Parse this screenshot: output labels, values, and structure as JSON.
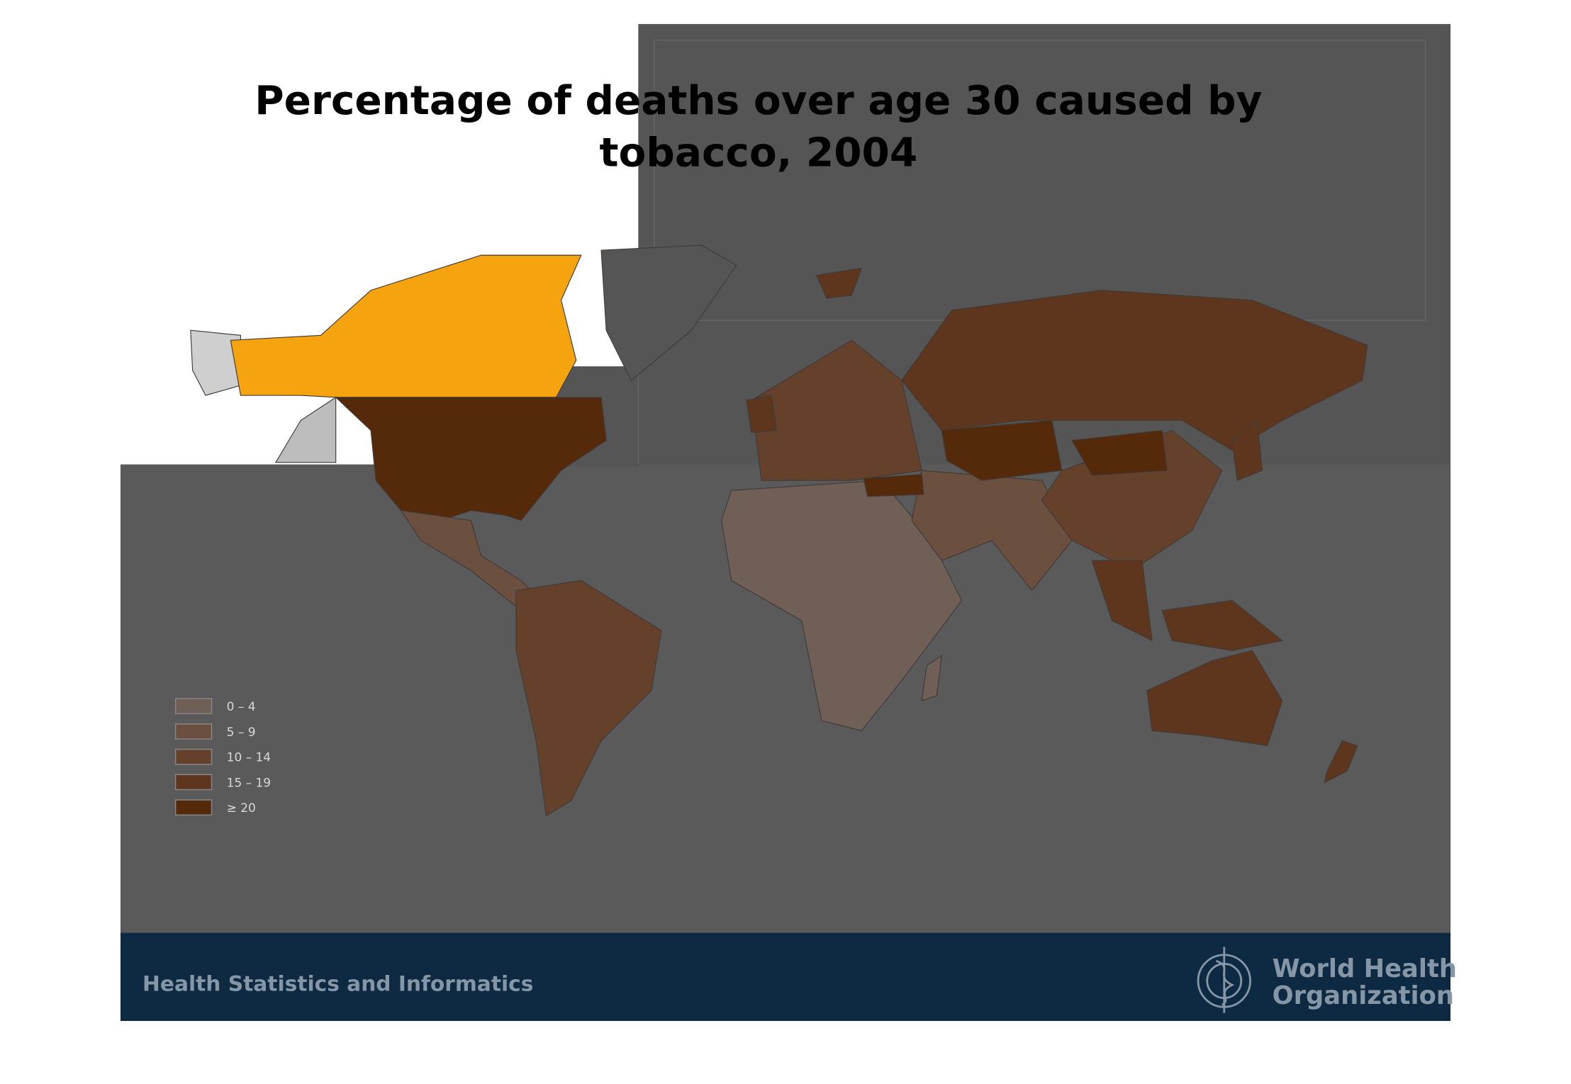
{
  "title": {
    "lines": [
      "Percentage of deaths over age 30 caused by",
      "tobacco, 2004"
    ]
  },
  "legend": {
    "items": [
      {
        "label": "0 – 4",
        "color": "#6f5f56"
      },
      {
        "label": "5 – 9",
        "color": "#6b4f3f"
      },
      {
        "label": "10 – 14",
        "color": "#65412c"
      },
      {
        "label": "15 – 19",
        "color": "#5d361d"
      },
      {
        "label": "≥ 20",
        "color": "#552a0b"
      }
    ]
  },
  "footer": {
    "text": "Health Statistics and Informatics",
    "logo_lines": [
      "World Health",
      "Organization"
    ]
  }
}
